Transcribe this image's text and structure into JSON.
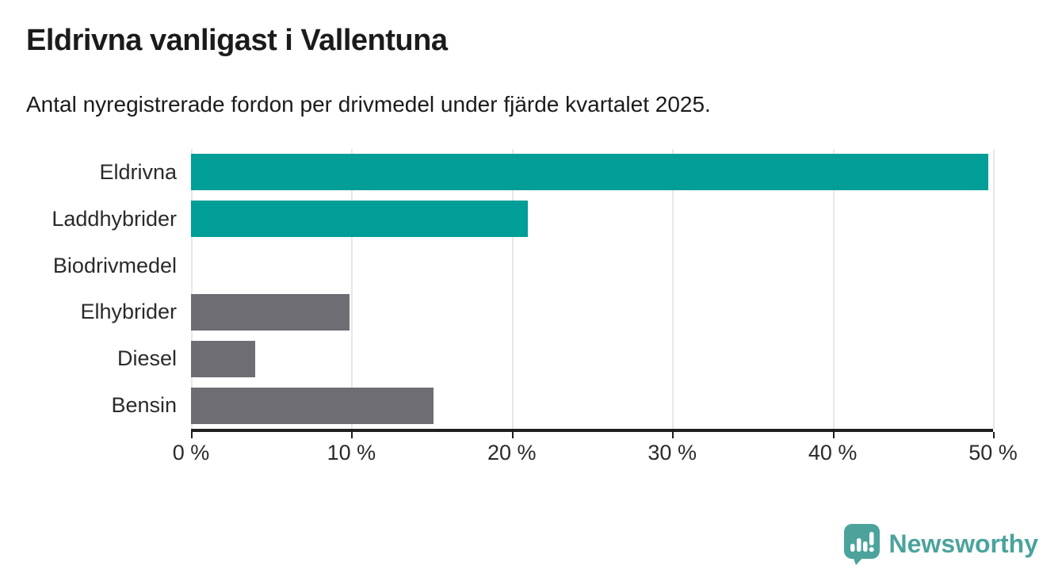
{
  "title": "Eldrivna vanligast i Vallentuna",
  "subtitle": "Antal nyregistrerade fordon per drivmedel under fjärde kvartalet 2025.",
  "chart_data": {
    "type": "bar",
    "orientation": "horizontal",
    "title": "Eldrivna vanligast i Vallentuna",
    "subtitle": "Antal nyregistrerade fordon per drivmedel under fjärde kvartalet 2025.",
    "categories": [
      "Eldrivna",
      "Laddhybrider",
      "Biodrivmedel",
      "Elhybrider",
      "Diesel",
      "Bensin"
    ],
    "values": [
      49.7,
      21,
      0,
      9.9,
      4,
      15.1
    ],
    "unit": "%",
    "xlim": [
      0,
      50
    ],
    "x_ticks": [
      "0 %",
      "10 %",
      "20 %",
      "30 %",
      "40 %",
      "50 %"
    ],
    "x_tick_values": [
      0,
      10,
      20,
      30,
      40,
      50
    ],
    "grid": true,
    "legend": false,
    "bar_colors": [
      "#009e96",
      "#009e96",
      "#009e96",
      "#6e6d74",
      "#6e6d74",
      "#6e6d74"
    ]
  },
  "colors": {
    "accent_teal": "#009e96",
    "bar_gray": "#6e6d74",
    "grid": "#e7e7e7",
    "axis": "#1f1f1f",
    "text": "#1b1b1b",
    "logo_teal": "#4ba39c"
  },
  "footer": {
    "brand": "Newsworthy",
    "logo_icon": "newsworthy-bar-chart-speech-bubble-icon"
  }
}
